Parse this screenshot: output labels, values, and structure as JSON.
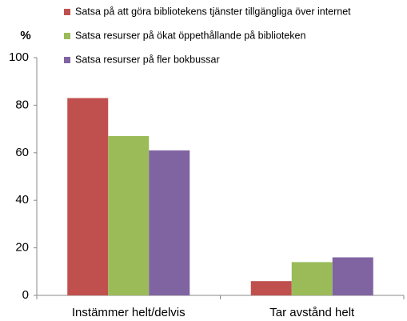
{
  "chart_data": {
    "type": "bar",
    "y_label": "%",
    "categories": [
      "Instämmer helt/delvis",
      "Tar avstånd helt"
    ],
    "series": [
      {
        "name": "Satsa på att göra bibliotekens tjänster tillgängliga över internet",
        "color": "#c0504d",
        "values": [
          83,
          6
        ]
      },
      {
        "name": "Satsa resurser på ökat öppethållande på biblioteken",
        "color": "#9bbb59",
        "values": [
          67,
          14
        ]
      },
      {
        "name": "Satsa resurser på fler bokbussar",
        "color": "#8064a2",
        "values": [
          61,
          16
        ]
      }
    ],
    "ylim": [
      0,
      100
    ],
    "yticks": [
      0,
      20,
      40,
      60,
      80,
      100
    ],
    "grid": false,
    "legend": "top"
  }
}
